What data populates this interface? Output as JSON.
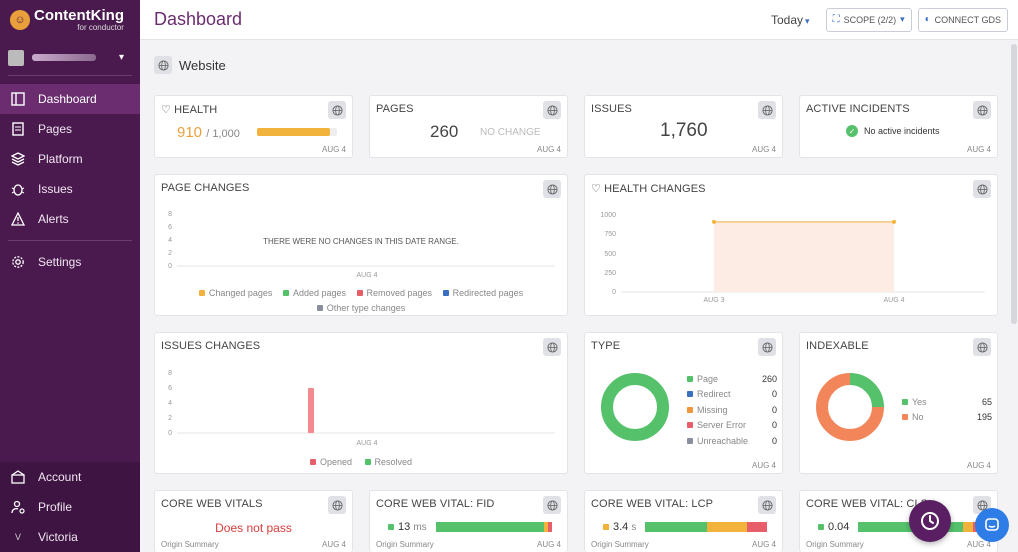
{
  "brand": {
    "name": "ContentKing",
    "sub": "for conductor"
  },
  "sidebar": {
    "items": [
      {
        "label": "Dashboard",
        "icon": "dashboard-icon",
        "active": true
      },
      {
        "label": "Pages",
        "icon": "pages-icon"
      },
      {
        "label": "Platform",
        "icon": "platform-icon"
      },
      {
        "label": "Issues",
        "icon": "issues-icon"
      },
      {
        "label": "Alerts",
        "icon": "alerts-icon"
      },
      {
        "label": "Settings",
        "icon": "settings-icon"
      }
    ],
    "bottom": [
      {
        "label": "Account"
      },
      {
        "label": "Profile"
      },
      {
        "label": "Victoria",
        "initial": "V"
      }
    ]
  },
  "header": {
    "title": "Dashboard",
    "date_range": "Today",
    "scope": "SCOPE (2/2)",
    "connect": "CONNECT GDS"
  },
  "section": {
    "title": "Website"
  },
  "cards": {
    "health": {
      "title": "HEALTH",
      "value": "910",
      "max": "/ 1,000",
      "date": "AUG 4",
      "fill": 0.91
    },
    "pages": {
      "title": "PAGES",
      "value": "260",
      "change": "NO CHANGE",
      "date": "AUG 4"
    },
    "issues": {
      "title": "ISSUES",
      "value": "1,760",
      "date": "AUG 4"
    },
    "incidents": {
      "title": "ACTIVE INCIDENTS",
      "text": "No active incidents",
      "date": "AUG 4"
    },
    "page_changes": {
      "title": "PAGE CHANGES",
      "empty": "THERE WERE NO CHANGES IN THIS DATE RANGE.",
      "yticks": [
        "8",
        "6",
        "4",
        "2",
        "0"
      ],
      "xlabel": "AUG 4",
      "legend": [
        {
          "label": "Changed pages",
          "color": "#f2b33d"
        },
        {
          "label": "Added pages",
          "color": "#55c26b"
        },
        {
          "label": "Removed pages",
          "color": "#e85d6a"
        },
        {
          "label": "Redirected pages",
          "color": "#3a6fc0"
        },
        {
          "label": "Other type changes",
          "color": "#8a8fa0"
        }
      ]
    },
    "health_changes": {
      "title": "HEALTH CHANGES",
      "yticks": [
        "1000",
        "750",
        "500",
        "250",
        "0"
      ],
      "xticks": [
        "AUG 3",
        "AUG 4"
      ]
    },
    "issues_changes": {
      "title": "ISSUES CHANGES",
      "yticks": [
        "8",
        "6",
        "4",
        "2",
        "0"
      ],
      "xlabel": "AUG 4",
      "legend": [
        {
          "label": "Opened",
          "color": "#e85d6a"
        },
        {
          "label": "Resolved",
          "color": "#55c26b"
        }
      ]
    },
    "type": {
      "title": "TYPE",
      "date": "AUG 4",
      "rows": [
        {
          "label": "Page",
          "value": "260",
          "color": "#55c26b"
        },
        {
          "label": "Redirect",
          "value": "0",
          "color": "#3a6fc0"
        },
        {
          "label": "Missing",
          "value": "0",
          "color": "#f2963d"
        },
        {
          "label": "Server Error",
          "value": "0",
          "color": "#e85d6a"
        },
        {
          "label": "Unreachable",
          "value": "0",
          "color": "#8a8fa0"
        }
      ]
    },
    "indexable": {
      "title": "INDEXABLE",
      "date": "AUG 4",
      "rows": [
        {
          "label": "Yes",
          "value": "65",
          "color": "#55c26b"
        },
        {
          "label": "No",
          "value": "195",
          "color": "#f2865a"
        }
      ]
    },
    "cwv": {
      "title": "CORE WEB VITALS",
      "status": "Does not pass",
      "foot": "Origin Summary",
      "date": "AUG 4"
    },
    "fid": {
      "title": "CORE WEB VITAL: FID",
      "value": "13",
      "unit": "ms",
      "foot": "Origin Summary",
      "date": "AUG 4"
    },
    "lcp": {
      "title": "CORE WEB VITAL: LCP",
      "value": "3.4",
      "unit": "s",
      "foot": "Origin Summary",
      "date": "AUG 4"
    },
    "cls": {
      "title": "CORE WEB VITAL: CLS",
      "value": "0.04",
      "foot": "Origin Summary",
      "date": "AUG 4"
    }
  },
  "chart_data": [
    {
      "type": "line",
      "title": "HEALTH CHANGES",
      "x": [
        "AUG 3",
        "AUG 4"
      ],
      "series": [
        {
          "values": [
            910,
            910
          ]
        }
      ],
      "ylim": [
        0,
        1000
      ]
    },
    {
      "type": "bar",
      "title": "ISSUES CHANGES",
      "categories": [
        "AUG 4"
      ],
      "series": [
        {
          "name": "Opened",
          "values": [
            6
          ]
        },
        {
          "name": "Resolved",
          "values": [
            0
          ]
        }
      ],
      "ylim": [
        0,
        8
      ]
    },
    {
      "type": "pie",
      "title": "TYPE",
      "categories": [
        "Page",
        "Redirect",
        "Missing",
        "Server Error",
        "Unreachable"
      ],
      "values": [
        260,
        0,
        0,
        0,
        0
      ]
    },
    {
      "type": "pie",
      "title": "INDEXABLE",
      "categories": [
        "Yes",
        "No"
      ],
      "values": [
        65,
        195
      ]
    }
  ]
}
